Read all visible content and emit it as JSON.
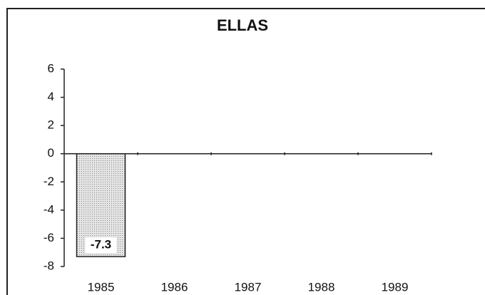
{
  "chart_data": {
    "type": "bar",
    "title": "ELLAS",
    "categories": [
      "1985",
      "1986",
      "1987",
      "1988",
      "1989"
    ],
    "values": [
      -7.3,
      null,
      null,
      null,
      null
    ],
    "color": "#cfcfcf",
    "ylim": [
      -8,
      6
    ],
    "yticks": [
      -8,
      -6,
      -4,
      -2,
      0,
      2,
      4,
      6
    ]
  }
}
